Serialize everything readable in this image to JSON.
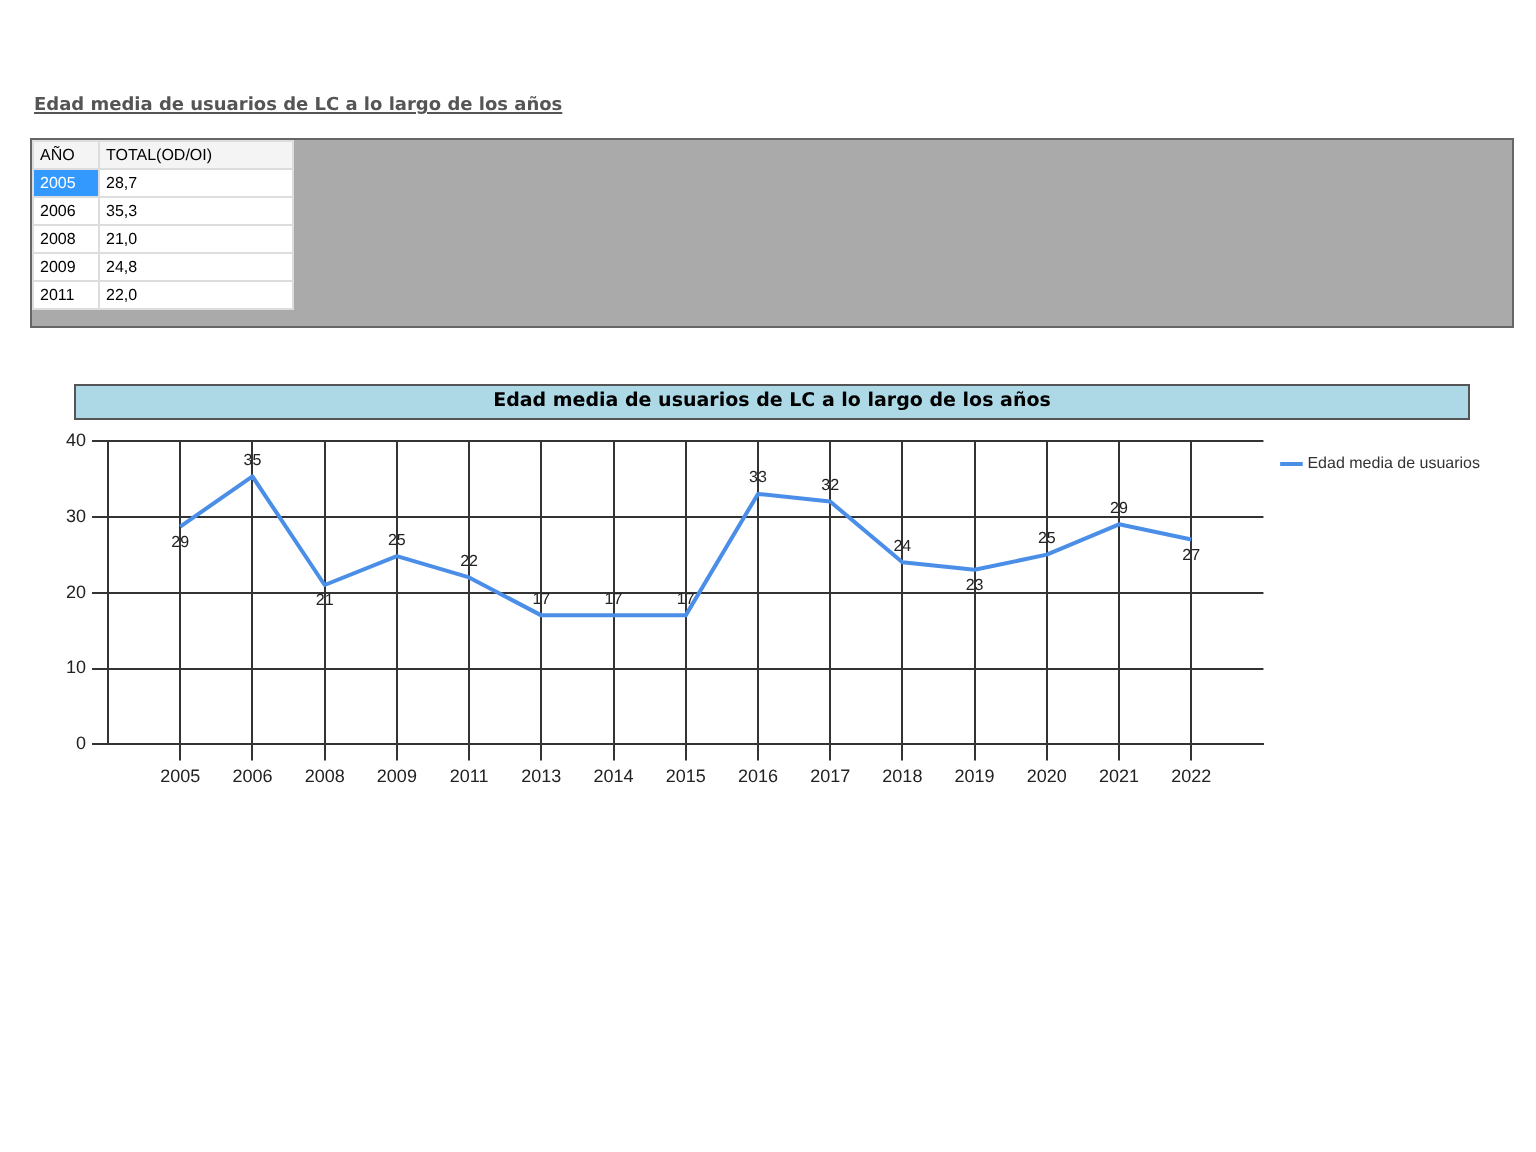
{
  "chart_data": {
    "type": "line",
    "title": "Edad media de usuarios de LC a lo largo de los años",
    "categories": [
      "2005",
      "2006",
      "2008",
      "2009",
      "2011",
      "2013",
      "2014",
      "2015",
      "2016",
      "2017",
      "2018",
      "2019",
      "2020",
      "2021",
      "2022"
    ],
    "series": [
      {
        "name": "Edad media de usuarios",
        "color": "#4a8ee8",
        "values": [
          28.7,
          35.3,
          21.0,
          24.8,
          22.0,
          17.0,
          17,
          17,
          33,
          32,
          24,
          23,
          25,
          29,
          27
        ],
        "value_labels": [
          "29",
          "35",
          "21",
          "25",
          "22",
          "17",
          "17",
          "17",
          "33",
          "32",
          "24",
          "23",
          "25",
          "29",
          "27"
        ]
      }
    ],
    "ylim": [
      0,
      40
    ],
    "yticks": [
      0,
      10,
      20,
      30,
      40
    ],
    "grid": true,
    "legend": "top right",
    "marker": "none",
    "line_style": "solid",
    "annotations": [
      "AÑO",
      "TOTAL(OD/OI)",
      "28,7",
      "35,3",
      "21,0",
      "24,8",
      "22,0"
    ]
  }
}
